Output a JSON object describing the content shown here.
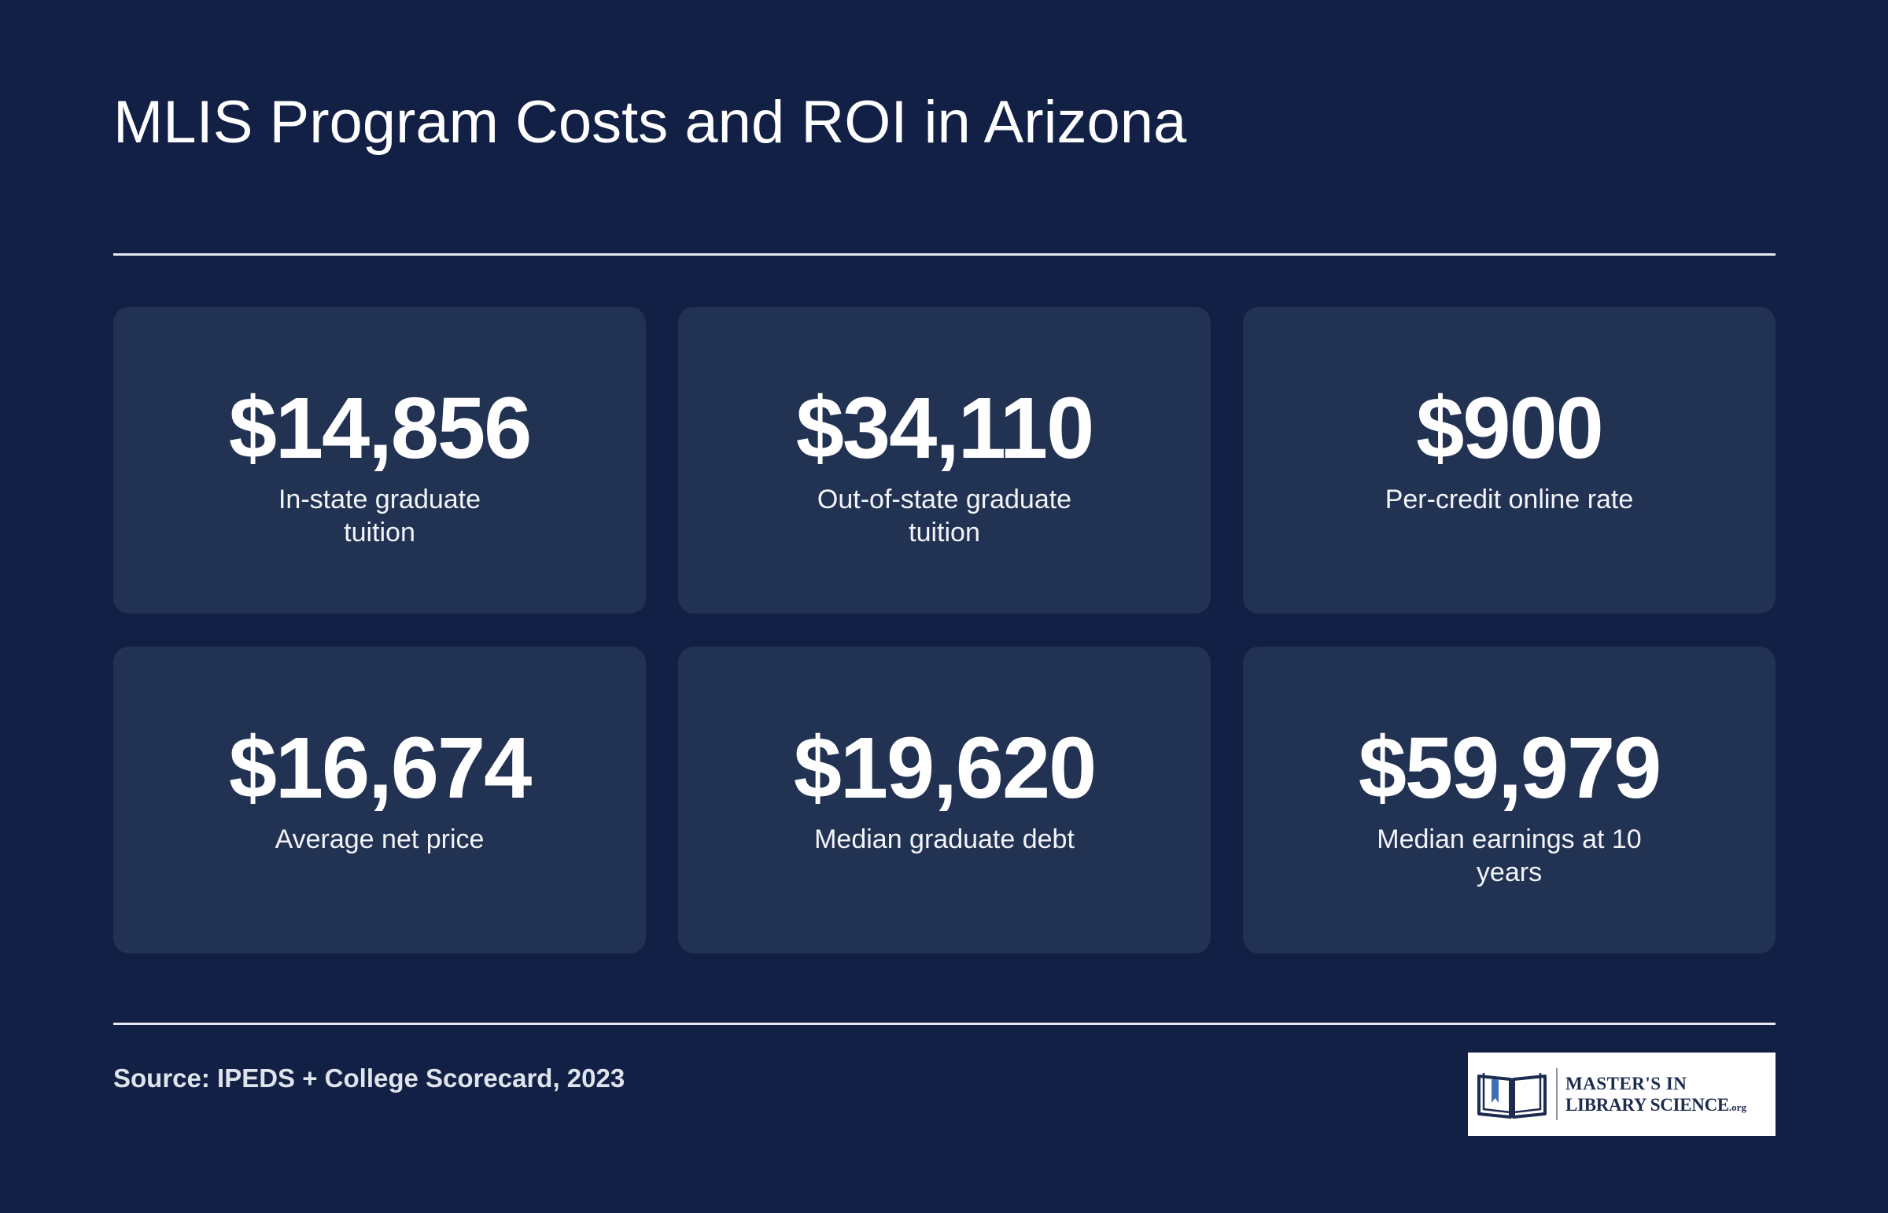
{
  "header": {
    "title": "MLIS Program Costs and ROI in Arizona"
  },
  "stats": [
    {
      "value": "$14,856",
      "label": "In-state graduate tuition"
    },
    {
      "value": "$34,110",
      "label": "Out-of-state graduate tuition"
    },
    {
      "value": "$900",
      "label": "Per-credit online rate"
    },
    {
      "value": "$16,674",
      "label": "Average net price"
    },
    {
      "value": "$19,620",
      "label": "Median graduate debt"
    },
    {
      "value": "$59,979",
      "label": "Median earnings at 10 years"
    }
  ],
  "footer": {
    "source": "Source: IPEDS + College Scorecard, 2023",
    "logo": {
      "line1": "MASTER'S IN",
      "line2": "LIBRARY SCIENCE",
      "suffix": ".org",
      "icon": "open-book-icon"
    }
  },
  "colors": {
    "background": "#112044",
    "card": "#223253",
    "text": "#ffffff",
    "logo_text": "#1c2b4f"
  }
}
